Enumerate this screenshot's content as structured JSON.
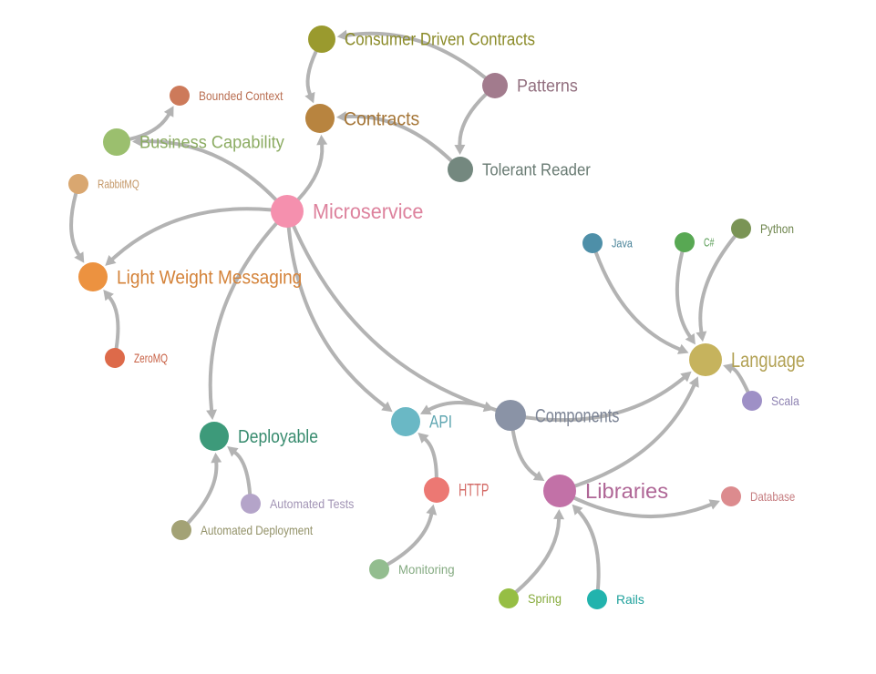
{
  "graph": {
    "nodes": [
      {
        "id": "consumer_driven_contracts",
        "label": "Consumer Driven Contracts",
        "color": "#9a9a2e"
      },
      {
        "id": "patterns",
        "label": "Patterns",
        "color": "#a27b8d"
      },
      {
        "id": "bounded_context",
        "label": "Bounded Context",
        "color": "#cd7a5a"
      },
      {
        "id": "contracts",
        "label": "Contracts",
        "color": "#b8843f"
      },
      {
        "id": "business_capability",
        "label": "Business Capability",
        "color": "#9bbf6e"
      },
      {
        "id": "tolerant_reader",
        "label": "Tolerant Reader",
        "color": "#74887f"
      },
      {
        "id": "rabbitmq",
        "label": "RabbitMQ",
        "color": "#d9a770"
      },
      {
        "id": "microservice",
        "label": "Microservice",
        "color": "#f590ae"
      },
      {
        "id": "java",
        "label": "Java",
        "color": "#4e8fa8"
      },
      {
        "id": "csharp",
        "label": "C#",
        "color": "#58a853"
      },
      {
        "id": "python",
        "label": "Python",
        "color": "#7a9455"
      },
      {
        "id": "light_weight_messaging",
        "label": "Light Weight Messaging",
        "color": "#ec9240"
      },
      {
        "id": "zeromq",
        "label": "ZeroMQ",
        "color": "#dd6a4a"
      },
      {
        "id": "language",
        "label": "Language",
        "color": "#c6b35d"
      },
      {
        "id": "scala",
        "label": "Scala",
        "color": "#9e90c6"
      },
      {
        "id": "api",
        "label": "API",
        "color": "#6ab8c5"
      },
      {
        "id": "components",
        "label": "Components",
        "color": "#8a93a6"
      },
      {
        "id": "deployable",
        "label": "Deployable",
        "color": "#3d9a7a"
      },
      {
        "id": "automated_tests",
        "label": "Automated Tests",
        "color": "#b4a4c9"
      },
      {
        "id": "automated_deployment",
        "label": "Automated Deployment",
        "color": "#a3a275"
      },
      {
        "id": "http",
        "label": "HTTP",
        "color": "#ec7873"
      },
      {
        "id": "libraries",
        "label": "Libraries",
        "color": "#c271a7"
      },
      {
        "id": "database",
        "label": "Database",
        "color": "#dc8b8e"
      },
      {
        "id": "monitoring",
        "label": "Monitoring",
        "color": "#93bd8f"
      },
      {
        "id": "spring",
        "label": "Spring",
        "color": "#96be44"
      },
      {
        "id": "rails",
        "label": "Rails",
        "color": "#22b3ad"
      }
    ],
    "edges": [
      {
        "from": "patterns",
        "to": "consumer_driven_contracts"
      },
      {
        "from": "patterns",
        "to": "tolerant_reader"
      },
      {
        "from": "consumer_driven_contracts",
        "to": "contracts"
      },
      {
        "from": "tolerant_reader",
        "to": "contracts"
      },
      {
        "from": "microservice",
        "to": "contracts"
      },
      {
        "from": "microservice",
        "to": "business_capability"
      },
      {
        "from": "business_capability",
        "to": "bounded_context"
      },
      {
        "from": "microservice",
        "to": "light_weight_messaging"
      },
      {
        "from": "rabbitmq",
        "to": "light_weight_messaging"
      },
      {
        "from": "zeromq",
        "to": "light_weight_messaging"
      },
      {
        "from": "microservice",
        "to": "deployable"
      },
      {
        "from": "microservice",
        "to": "api"
      },
      {
        "from": "microservice",
        "to": "components"
      },
      {
        "from": "components",
        "to": "api"
      },
      {
        "from": "components",
        "to": "language"
      },
      {
        "from": "components",
        "to": "libraries"
      },
      {
        "from": "java",
        "to": "language"
      },
      {
        "from": "csharp",
        "to": "language"
      },
      {
        "from": "python",
        "to": "language"
      },
      {
        "from": "scala",
        "to": "language"
      },
      {
        "from": "libraries",
        "to": "language"
      },
      {
        "from": "libraries",
        "to": "database"
      },
      {
        "from": "spring",
        "to": "libraries"
      },
      {
        "from": "rails",
        "to": "libraries"
      },
      {
        "from": "http",
        "to": "api"
      },
      {
        "from": "monitoring",
        "to": "http"
      },
      {
        "from": "automated_tests",
        "to": "deployable"
      },
      {
        "from": "automated_deployment",
        "to": "deployable"
      }
    ]
  }
}
